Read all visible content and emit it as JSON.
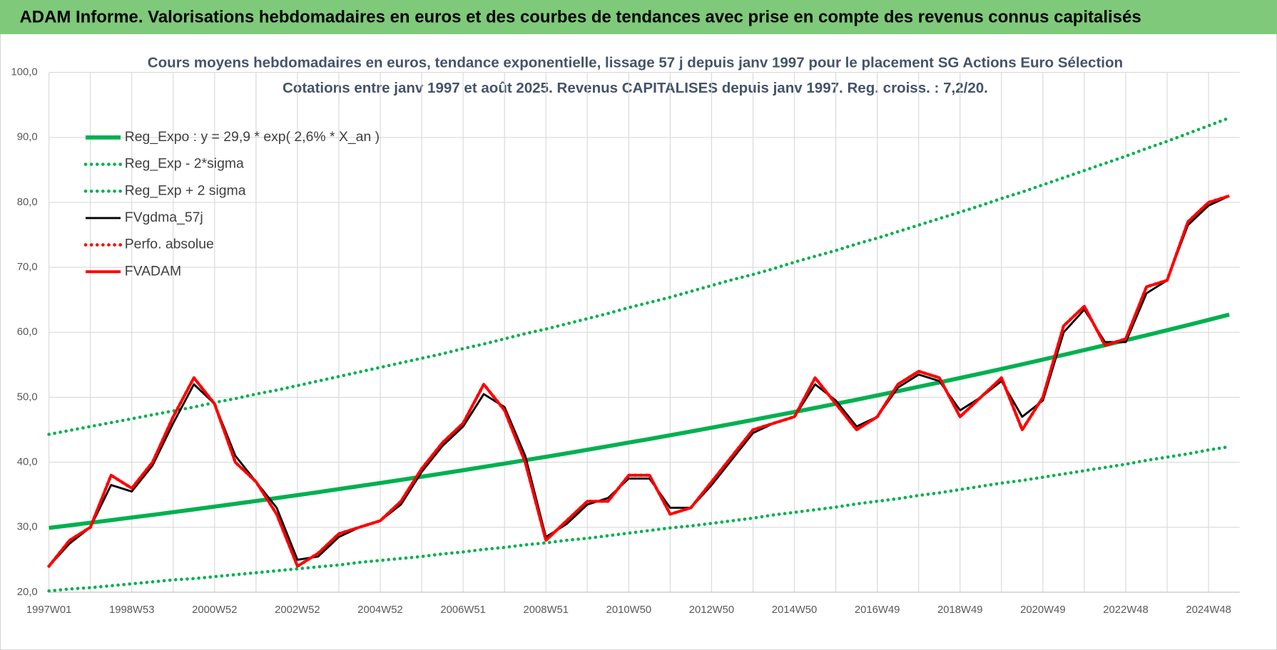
{
  "header": {
    "title": "ADAM Informe. Valorisations hebdomadaires en euros et des courbes de tendances avec prise en compte des revenus connus capitalisés"
  },
  "chart_data": {
    "type": "line",
    "title": "Cours moyens hebdomadaires en euros, tendance exponentielle, lissage 57 j depuis janv 1997 pour le placement SG Actions Euro Sélection",
    "subtitle": "Cotations entre janv 1997 et août 2025.  Revenus CAPITALISES depuis janv 1997. Reg. croiss. : 7,2/20.",
    "categories": [
      "1997W01",
      null,
      null,
      null,
      "1998W53",
      null,
      null,
      null,
      "2000W52",
      null,
      null,
      null,
      "2002W52",
      null,
      null,
      null,
      "2004W52",
      null,
      null,
      null,
      "2006W51",
      null,
      null,
      null,
      "2008W51",
      null,
      null,
      null,
      "2010W50",
      null,
      null,
      null,
      "2012W50",
      null,
      null,
      null,
      "2014W50",
      null,
      null,
      null,
      "2016W49",
      null,
      null,
      null,
      "2018W49",
      null,
      null,
      null,
      "2020W49",
      null,
      null,
      null,
      "2022W48",
      null,
      null,
      null,
      "2024W48",
      null
    ],
    "ylim": [
      20,
      100
    ],
    "yticks": [
      {
        "value": 20,
        "label": "20,0"
      },
      {
        "value": 30,
        "label": "30,0"
      },
      {
        "value": 40,
        "label": "40,0"
      },
      {
        "value": 50,
        "label": "50,0"
      },
      {
        "value": 60,
        "label": "60,0"
      },
      {
        "value": 70,
        "label": "70,0"
      },
      {
        "value": 80,
        "label": "80,0"
      },
      {
        "value": 90,
        "label": "90,0"
      },
      {
        "value": 100,
        "label": "100,0"
      }
    ],
    "grid": true,
    "legend": "top-left",
    "series": [
      {
        "name": "Reg_Expo : y = 29,9 * exp( 2,6% *  X_an )",
        "color": "#00b050",
        "style": "solid",
        "values": [
          29.9,
          30.29,
          30.69,
          31.09,
          31.5,
          31.91,
          32.33,
          32.75,
          33.18,
          33.61,
          34.05,
          34.5,
          34.95,
          35.4,
          35.87,
          36.34,
          36.81,
          37.29,
          37.78,
          38.28,
          38.78,
          39.29,
          39.8,
          40.32,
          40.85,
          41.38,
          41.92,
          42.47,
          43.03,
          43.59,
          44.16,
          44.74,
          45.33,
          45.92,
          46.52,
          47.13,
          47.74,
          48.37,
          49.0,
          49.64,
          50.29,
          50.95,
          51.62,
          52.29,
          52.98,
          53.67,
          54.37,
          55.08,
          55.8,
          56.53,
          57.27,
          58.02,
          58.78,
          59.55,
          60.33,
          61.12,
          61.92,
          62.73
        ]
      },
      {
        "name": "Reg_Exp - 2*sigma",
        "color": "#00b050",
        "style": "dotted",
        "values": [
          20.2,
          20.5,
          20.7,
          21.0,
          21.3,
          21.6,
          21.9,
          22.1,
          22.4,
          22.7,
          23.0,
          23.3,
          23.6,
          23.9,
          24.2,
          24.6,
          24.9,
          25.2,
          25.5,
          25.9,
          26.2,
          26.6,
          26.9,
          27.3,
          27.6,
          28.0,
          28.3,
          28.7,
          29.1,
          29.5,
          29.9,
          30.2,
          30.6,
          31.0,
          31.4,
          31.9,
          32.3,
          32.7,
          33.1,
          33.6,
          34.0,
          34.4,
          34.9,
          35.3,
          35.8,
          36.3,
          36.8,
          37.2,
          37.7,
          38.2,
          38.7,
          39.2,
          39.7,
          40.3,
          40.8,
          41.3,
          41.9,
          42.4
        ]
      },
      {
        "name": "Reg_Exp + 2 sigma",
        "color": "#00b050",
        "style": "dotted",
        "values": [
          44.3,
          44.9,
          45.5,
          46.1,
          46.7,
          47.3,
          47.9,
          48.5,
          49.2,
          49.8,
          50.5,
          51.1,
          51.8,
          52.5,
          53.2,
          53.9,
          54.6,
          55.3,
          56.0,
          56.7,
          57.5,
          58.2,
          59.0,
          59.8,
          60.5,
          61.3,
          62.1,
          62.9,
          63.8,
          64.6,
          65.4,
          66.3,
          67.2,
          68.1,
          68.9,
          69.8,
          70.8,
          71.7,
          72.6,
          73.6,
          74.5,
          75.5,
          76.5,
          77.5,
          78.5,
          79.5,
          80.6,
          81.6,
          82.7,
          83.8,
          84.9,
          86.0,
          87.1,
          88.3,
          89.4,
          90.6,
          91.8,
          93.0
        ]
      },
      {
        "name": "FVgdma_57j",
        "color": "#000000",
        "style": "solid",
        "values": [
          24,
          27.5,
          30,
          36.5,
          35.5,
          39.5,
          46,
          52,
          49,
          41,
          37,
          33,
          25,
          25.5,
          28.5,
          30,
          31,
          33.5,
          38.5,
          42.5,
          45.5,
          50.5,
          48.5,
          41,
          28.5,
          30.5,
          33.5,
          34.5,
          37.5,
          37.5,
          33,
          33,
          36.5,
          40.5,
          44.5,
          46,
          47,
          52,
          49.5,
          45.5,
          47,
          51.5,
          53.5,
          52.5,
          48,
          50,
          52.5,
          47,
          49.5,
          60,
          63.5,
          58.5,
          58.5,
          66,
          68,
          76.5,
          79.5,
          81
        ]
      },
      {
        "name": "Perfo. absolue",
        "color": "#ff0000",
        "style": "dotted",
        "values": [
          24,
          28,
          30,
          38,
          36,
          40,
          47,
          53,
          49,
          40,
          37,
          32,
          24,
          26,
          29,
          30,
          31,
          34,
          39,
          43,
          46,
          52,
          48,
          40,
          28,
          31,
          34,
          34,
          38,
          38,
          32,
          33,
          37,
          41,
          45,
          46,
          47,
          53,
          49,
          45,
          47,
          52,
          54,
          53,
          47,
          50,
          53,
          45,
          50,
          61,
          64,
          58,
          59,
          67,
          68,
          77,
          80,
          81
        ]
      },
      {
        "name": "FVADAM",
        "color": "#ff0000",
        "style": "solid",
        "values": [
          24,
          28,
          30,
          38,
          36,
          40,
          47,
          53,
          49,
          40,
          37,
          32,
          24,
          26,
          29,
          30,
          31,
          34,
          39,
          43,
          46,
          52,
          48,
          40,
          28,
          31,
          34,
          34,
          38,
          38,
          32,
          33,
          37,
          41,
          45,
          46,
          47,
          53,
          49,
          45,
          47,
          52,
          54,
          53,
          47,
          50,
          53,
          45,
          50,
          61,
          64,
          58,
          59,
          67,
          68,
          77,
          80,
          81
        ]
      }
    ]
  }
}
